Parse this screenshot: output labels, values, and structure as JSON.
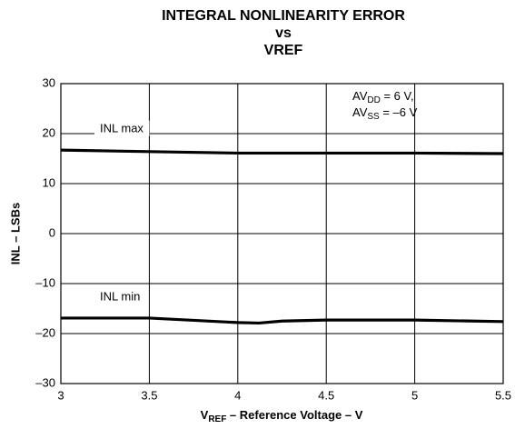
{
  "chart_data": {
    "type": "line",
    "title": [
      "INTEGRAL NONLINEARITY ERROR",
      "vs",
      "VREF"
    ],
    "xlabel": [
      {
        "t": "V"
      },
      {
        "sub": "REF"
      },
      {
        "t": " – Reference Voltage – V"
      }
    ],
    "ylabel": "INL – LSBs",
    "x": [
      3,
      3.5,
      4,
      4.12,
      4.25,
      4.5,
      5,
      5.5
    ],
    "xlim": [
      3,
      5.5
    ],
    "xticks": [
      3,
      3.5,
      4,
      4.5,
      5,
      5.5
    ],
    "ylim": [
      -30,
      30
    ],
    "yticks": [
      {
        "value": -30,
        "label": "–30"
      },
      {
        "value": -20,
        "label": "–20"
      },
      {
        "value": -10,
        "label": "–10"
      },
      0,
      10,
      20,
      30
    ],
    "grid": true,
    "series": [
      {
        "name": "INL max",
        "color": "#000000",
        "values": [
          16.7,
          16.4,
          16.1,
          16.1,
          16.1,
          16.1,
          16.1,
          16.0
        ]
      },
      {
        "name": "INL min",
        "color": "#000000",
        "values": [
          -16.9,
          -16.9,
          -17.8,
          -17.9,
          -17.5,
          -17.3,
          -17.3,
          -17.6
        ]
      }
    ],
    "annotation": [
      [
        {
          "t": "AV"
        },
        {
          "sub": "DD"
        },
        {
          "t": " = 6 V,"
        }
      ],
      [
        {
          "t": "AV"
        },
        {
          "sub": "SS"
        },
        {
          "t": " = –6 V"
        }
      ]
    ]
  }
}
